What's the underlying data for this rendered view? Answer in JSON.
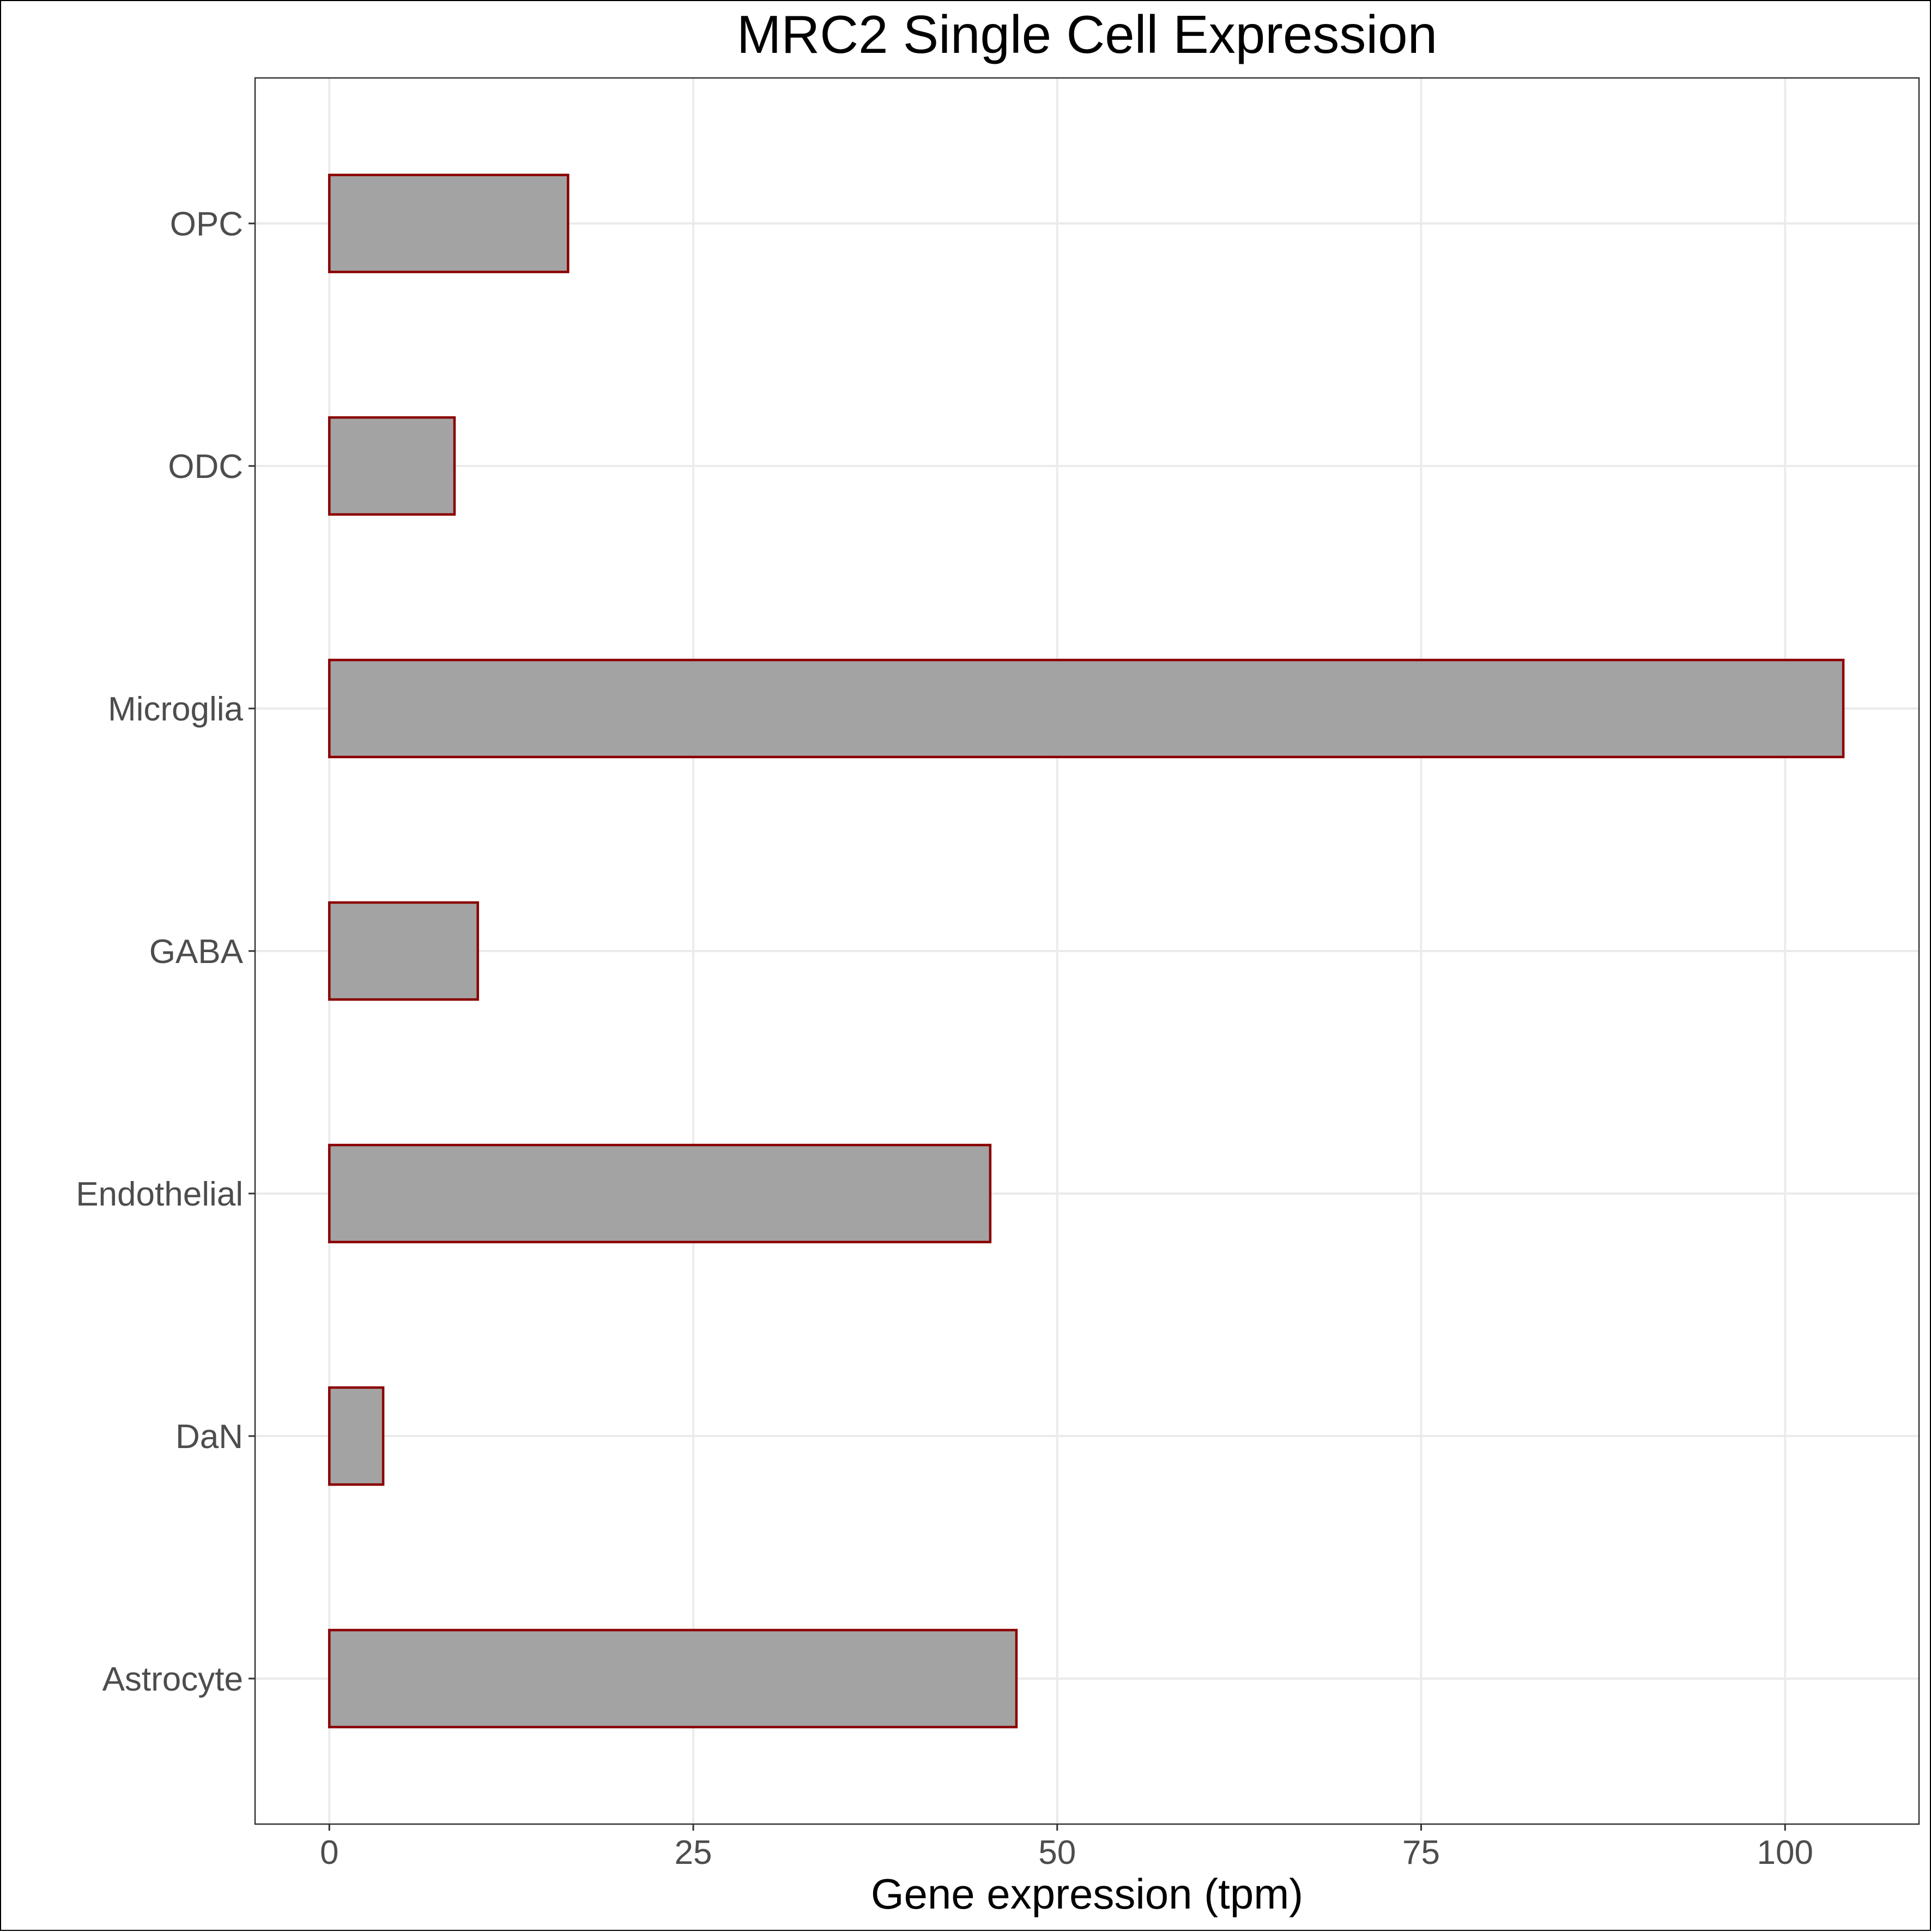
{
  "chart_data": {
    "type": "bar",
    "orientation": "horizontal",
    "title": "MRC2 Single Cell Expression",
    "xlabel": "Gene expression (tpm)",
    "ylabel": "",
    "categories": [
      "Astrocyte",
      "DaN",
      "Endothelial",
      "GABA",
      "Microglia",
      "ODC",
      "OPC"
    ],
    "values": [
      47.2,
      3.7,
      45.4,
      10.2,
      104.0,
      8.6,
      16.4
    ],
    "xlim": [
      -5.1,
      109.2
    ],
    "x_ticks": [
      0,
      25,
      50,
      75,
      100
    ],
    "x_tick_labels": [
      "0",
      "25",
      "50",
      "75",
      "100"
    ],
    "grid": true,
    "bar_fill": "#a3a3a3",
    "bar_outline": "#8b0000",
    "gridline_color": "#ebebeb",
    "tick_label_color": "#4d4d4d"
  }
}
